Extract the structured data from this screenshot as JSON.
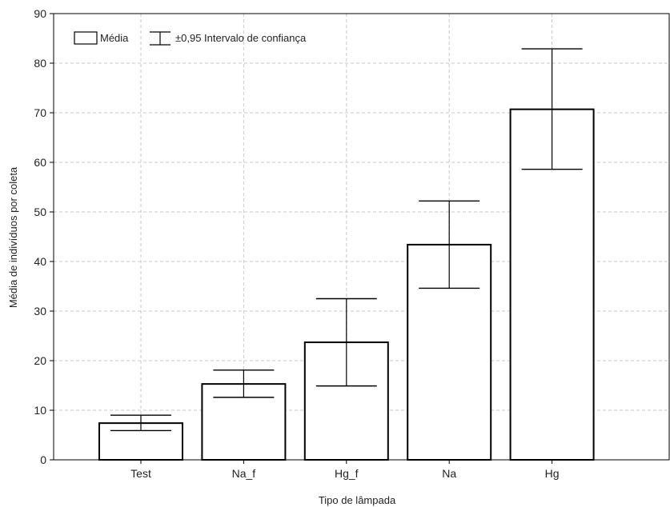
{
  "chart_data": {
    "type": "bar",
    "title": "",
    "xlabel": "Tipo de lâmpada",
    "ylabel": "Média de indivíduos por coleta",
    "categories": [
      "Test",
      "Na_f",
      "Hg_f",
      "Na",
      "Hg"
    ],
    "series": [
      {
        "values": [
          7.4,
          15.3,
          23.7,
          43.4,
          70.7
        ],
        "ci_lower": [
          5.9,
          12.6,
          14.9,
          34.6,
          58.6
        ],
        "ci_upper": [
          9.0,
          18.1,
          32.5,
          52.2,
          82.9
        ]
      }
    ],
    "ylim": [
      0,
      90
    ],
    "yticks": [
      "0",
      "10",
      "20",
      "30",
      "40",
      "50",
      "60",
      "70",
      "80",
      "90"
    ],
    "grid": true,
    "legend": {
      "placement": "top-left",
      "mean_label": "Média",
      "ci_label": "±0,95 Intervalo de confiança"
    },
    "colors": {
      "bar_fill": "#ffffff",
      "bar_stroke": "#000000",
      "grid": "#c8c8c8",
      "axis": "#000000"
    }
  }
}
